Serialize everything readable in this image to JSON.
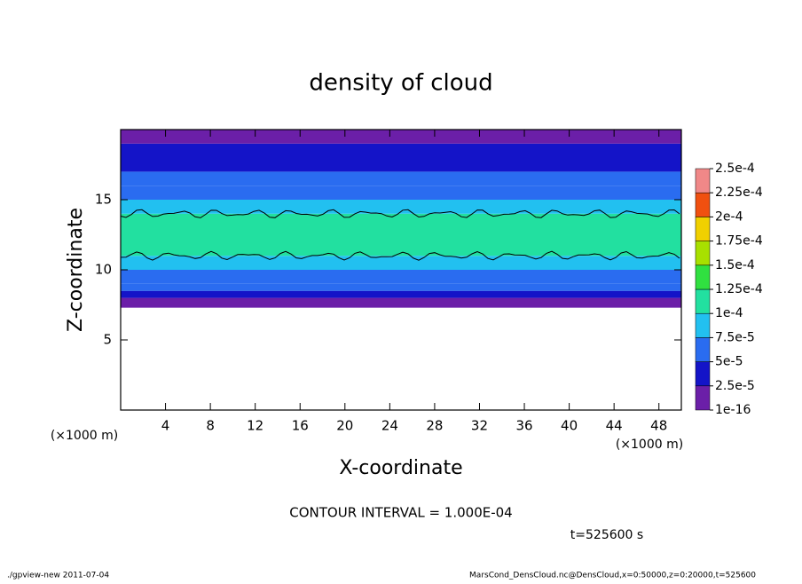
{
  "chart_data": {
    "type": "contour",
    "title": "density of cloud",
    "xlabel": "X-coordinate",
    "ylabel": "Z-coordinate",
    "xunit": "(×1000 m)",
    "yunit": "(×1000 m)",
    "xlim": [
      0,
      50
    ],
    "ylim": [
      0,
      20
    ],
    "xticks": [
      4,
      8,
      12,
      16,
      20,
      24,
      28,
      32,
      36,
      40,
      44,
      48
    ],
    "yticks": [
      5,
      10,
      15
    ],
    "z_bins": [
      7.3,
      8,
      8.5,
      9,
      10,
      11,
      14,
      15,
      16,
      17,
      19,
      20
    ],
    "values": [
      1e-05,
      3e-05,
      5e-05,
      7e-05,
      9e-05,
      0.00011,
      9e-05,
      7e-05,
      5e-05,
      3e-05,
      1e-05
    ],
    "levels": [
      {
        "value": 1e-16,
        "label": "1e-16"
      },
      {
        "value": 2.5e-05,
        "label": "2.5e-5"
      },
      {
        "value": 5e-05,
        "label": "5e-5"
      },
      {
        "value": 7.5e-05,
        "label": "7.5e-5"
      },
      {
        "value": 0.0001,
        "label": "1e-4"
      },
      {
        "value": 0.000125,
        "label": "1.25e-4"
      },
      {
        "value": 0.00015,
        "label": "1.5e-4"
      },
      {
        "value": 0.000175,
        "label": "1.75e-4"
      },
      {
        "value": 0.0002,
        "label": "2e-4"
      },
      {
        "value": 0.000225,
        "label": "2.25e-4"
      },
      {
        "value": 0.00025,
        "label": "2.5e-4"
      }
    ],
    "colors": [
      "#6b1fa8",
      "#1414c8",
      "#2a6cf0",
      "#22c0f0",
      "#22e0a0",
      "#30e040",
      "#a8e000",
      "#f0d000",
      "#f05010",
      "#f08888"
    ],
    "contour_interval": 0.0001,
    "contour_label": "CONTOUR INTERVAL = 1.000E-04",
    "time_label": "t=525600 s",
    "footer_left": "./gpview-new  2011-07-04",
    "footer_right": "MarsCond_DensCloud.nc@DensCloud,x=0:50000,z=0:20000,t=525600"
  }
}
